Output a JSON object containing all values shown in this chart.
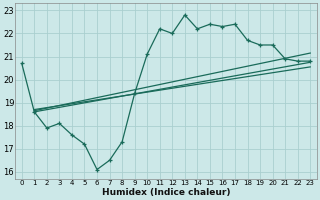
{
  "xlabel": "Humidex (Indice chaleur)",
  "ylabel": "",
  "xlim": [
    -0.5,
    23.5
  ],
  "ylim": [
    15.7,
    23.3
  ],
  "yticks": [
    16,
    17,
    18,
    19,
    20,
    21,
    22,
    23
  ],
  "xticks": [
    0,
    1,
    2,
    3,
    4,
    5,
    6,
    7,
    8,
    9,
    10,
    11,
    12,
    13,
    14,
    15,
    16,
    17,
    18,
    19,
    20,
    21,
    22,
    23
  ],
  "bg_color": "#cce8e8",
  "line_color": "#1a6b5a",
  "grid_color": "#aacfcf",
  "series1_x": [
    0,
    1,
    2,
    3,
    4,
    5,
    6,
    7,
    8,
    9,
    10,
    11,
    12,
    13,
    14,
    15,
    16,
    17,
    18,
    19,
    20,
    21,
    22,
    23
  ],
  "series1_y": [
    20.7,
    18.6,
    17.9,
    18.1,
    17.6,
    17.2,
    16.1,
    16.5,
    17.3,
    19.4,
    21.1,
    22.2,
    22.0,
    22.8,
    22.2,
    22.4,
    22.3,
    22.4,
    21.7,
    21.5,
    21.5,
    20.9,
    20.8,
    20.8
  ],
  "trend1_x": [
    1,
    23
  ],
  "trend1_y": [
    18.6,
    20.75
  ],
  "trend2_x": [
    1,
    23
  ],
  "trend2_y": [
    18.65,
    21.15
  ],
  "trend3_x": [
    1,
    23
  ],
  "trend3_y": [
    18.7,
    20.55
  ]
}
